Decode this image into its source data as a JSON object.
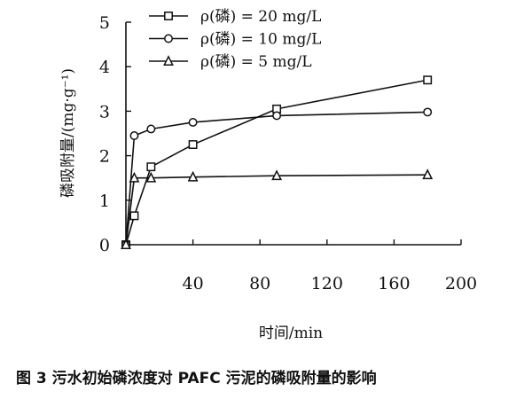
{
  "caption": "图 3 污水初始磷浓度对 PAFC 污泥的磷吸附量的影响",
  "chart_data": {
    "type": "line",
    "xlabel": "时间/min",
    "ylabel": "磷吸附量/(mg·g⁻¹)",
    "xlim": [
      0,
      200
    ],
    "ylim": [
      0,
      5
    ],
    "xticks": [
      40,
      80,
      120,
      160,
      200
    ],
    "yticks": [
      0,
      1,
      2,
      3,
      4,
      5
    ],
    "grid": false,
    "legend_position": "top-left",
    "series": [
      {
        "name": "ρ(磷) = 20 mg/L",
        "marker": "square",
        "x": [
          0,
          5,
          15,
          40,
          90,
          180
        ],
        "y": [
          0,
          0.65,
          1.75,
          2.25,
          3.05,
          3.7
        ]
      },
      {
        "name": "ρ(磷) = 10 mg/L",
        "marker": "circle",
        "x": [
          0,
          5,
          15,
          40,
          90,
          180
        ],
        "y": [
          0,
          2.45,
          2.6,
          2.75,
          2.9,
          2.98
        ]
      },
      {
        "name": "ρ(磷) = 5 mg/L",
        "marker": "triangle",
        "x": [
          0,
          5,
          15,
          40,
          90,
          180
        ],
        "y": [
          0,
          1.5,
          1.5,
          1.52,
          1.55,
          1.57
        ]
      }
    ]
  }
}
